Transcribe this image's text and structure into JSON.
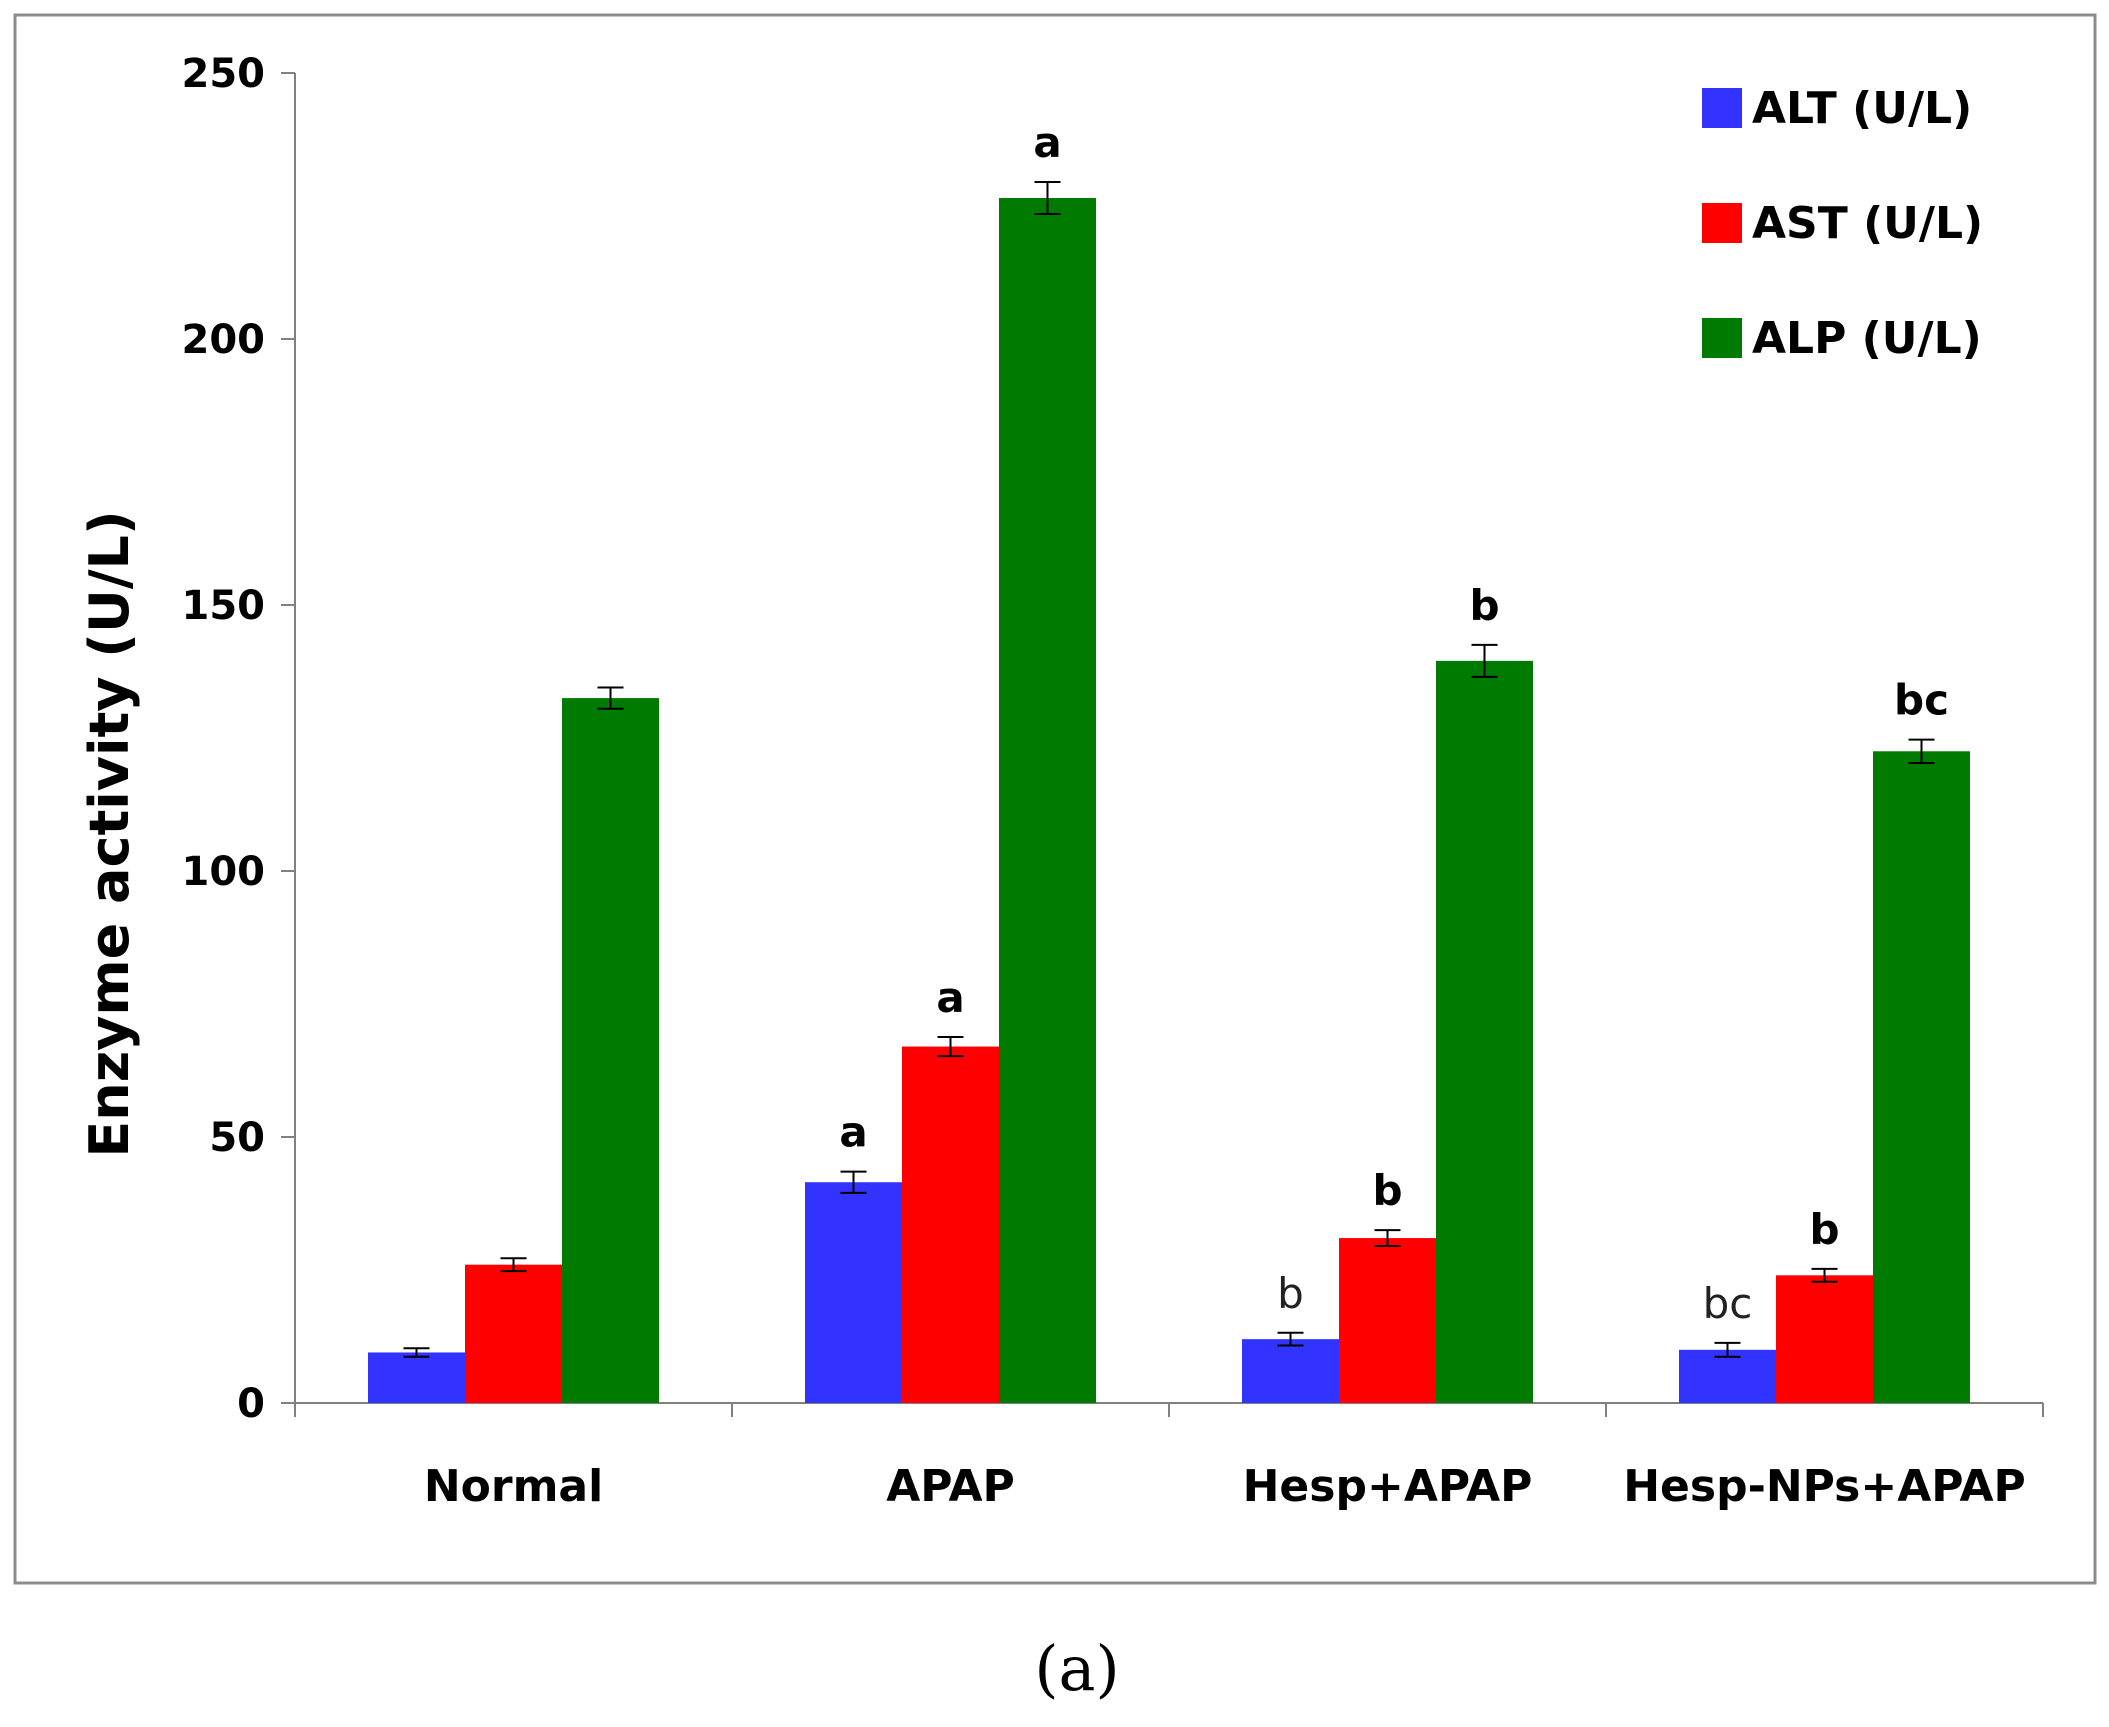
{
  "chart_data": {
    "type": "bar",
    "title": "",
    "xlabel": "",
    "ylabel": "Enzyme activity (U/L)",
    "ylim": [
      0,
      250
    ],
    "yticks": [
      0,
      50,
      100,
      150,
      200,
      250
    ],
    "categories": [
      "Normal",
      "APAP",
      "Hesp+APAP",
      "Hesp-NPs+APAP"
    ],
    "series": [
      {
        "name": "ALT (U/L)",
        "color": "#3333ff",
        "values": [
          9.5,
          41.5,
          12.0,
          10.0
        ],
        "errors": [
          0.8,
          2.0,
          1.2,
          1.3
        ],
        "labels": [
          "",
          "a",
          "b",
          "bc"
        ],
        "label_bold": [
          false,
          true,
          false,
          false
        ]
      },
      {
        "name": "AST (U/L)",
        "color": "#ff0000",
        "values": [
          26.0,
          67.0,
          31.0,
          24.0
        ],
        "errors": [
          1.2,
          1.8,
          1.5,
          1.2
        ],
        "labels": [
          "",
          "a",
          "b",
          "b"
        ],
        "label_bold": [
          false,
          true,
          true,
          true
        ]
      },
      {
        "name": "ALP (U/L)",
        "color": "#007a00",
        "values": [
          132.5,
          226.5,
          139.5,
          122.5
        ],
        "errors": [
          2.0,
          3.0,
          3.0,
          2.2
        ],
        "labels": [
          "",
          "a",
          "b",
          "bc"
        ],
        "label_bold": [
          false,
          true,
          true,
          true
        ]
      }
    ],
    "legend_position": "top-right",
    "grid": false
  },
  "panel_label": "(a)"
}
